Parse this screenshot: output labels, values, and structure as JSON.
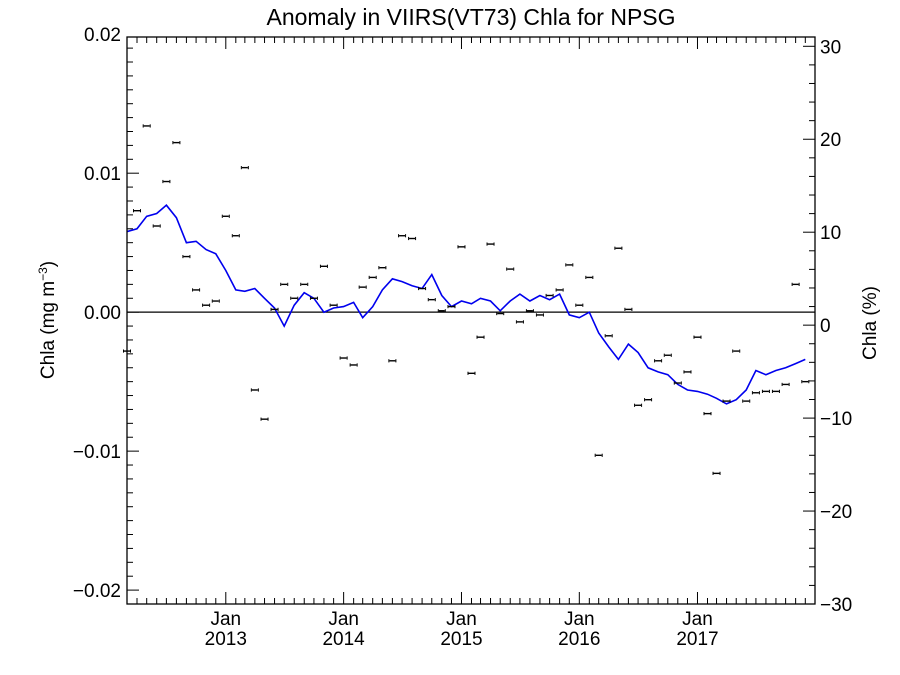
{
  "chart_data": {
    "type": "scatter",
    "title": "Anomaly in VIIRS(VT73) Chla for NPSG",
    "ylabel_left_main": "Chla (mg m",
    "ylabel_left_sup": "−3",
    "ylabel_left_tail": ")",
    "ylabel_right": "Chla (%)",
    "xlim": [
      "2012-03-01",
      "2017-12-31"
    ],
    "ylim_left": [
      -0.021,
      0.0198
    ],
    "ylim_right": [
      -30,
      31
    ],
    "y_ticks_left": [
      {
        "value": 0.02,
        "label": "0.02"
      },
      {
        "value": 0.01,
        "label": "0.01"
      },
      {
        "value": 0.0,
        "label": "0.00"
      },
      {
        "value": -0.01,
        "label": "−0.01"
      },
      {
        "value": -0.02,
        "label": "−0.02"
      }
    ],
    "y_ticks_right": [
      {
        "value": 30,
        "label": "30"
      },
      {
        "value": 20,
        "label": "20"
      },
      {
        "value": 10,
        "label": "10"
      },
      {
        "value": 0,
        "label": "0"
      },
      {
        "value": -10,
        "label": "−10"
      },
      {
        "value": -20,
        "label": "−20"
      },
      {
        "value": -30,
        "label": "−30"
      }
    ],
    "x_ticks": [
      {
        "date": "2013-01-01",
        "month": "Jan",
        "year": "2013"
      },
      {
        "date": "2014-01-01",
        "month": "Jan",
        "year": "2014"
      },
      {
        "date": "2015-01-01",
        "month": "Jan",
        "year": "2015"
      },
      {
        "date": "2016-01-01",
        "month": "Jan",
        "year": "2016"
      },
      {
        "date": "2017-01-01",
        "month": "Jan",
        "year": "2017"
      }
    ],
    "grid": false,
    "zero_line": true,
    "colors": {
      "smoothed_line": "#0000ee",
      "points": "#000000"
    },
    "series": [
      {
        "kind": "points_with_error_bars",
        "x": [
          "2012-03-01",
          "2012-04-01",
          "2012-05-01",
          "2012-06-01",
          "2012-07-01",
          "2012-08-01",
          "2012-09-01",
          "2012-10-01",
          "2012-11-01",
          "2012-12-01",
          "2013-01-01",
          "2013-02-01",
          "2013-03-01",
          "2013-04-01",
          "2013-05-01",
          "2013-06-01",
          "2013-07-01",
          "2013-08-01",
          "2013-09-01",
          "2013-10-01",
          "2013-11-01",
          "2013-12-01",
          "2014-01-01",
          "2014-02-01",
          "2014-03-01",
          "2014-04-01",
          "2014-05-01",
          "2014-06-01",
          "2014-07-01",
          "2014-08-01",
          "2014-09-01",
          "2014-10-01",
          "2014-11-01",
          "2014-12-01",
          "2015-01-01",
          "2015-02-01",
          "2015-03-01",
          "2015-04-01",
          "2015-05-01",
          "2015-06-01",
          "2015-07-01",
          "2015-08-01",
          "2015-09-01",
          "2015-10-01",
          "2015-11-01",
          "2015-12-01",
          "2016-01-01",
          "2016-02-01",
          "2016-03-01",
          "2016-04-01",
          "2016-05-01",
          "2016-06-01",
          "2016-07-01",
          "2016-08-01",
          "2016-09-01",
          "2016-10-01",
          "2016-11-01",
          "2016-12-01",
          "2017-01-01",
          "2017-02-01",
          "2017-03-01",
          "2017-04-01",
          "2017-05-01",
          "2017-06-01",
          "2017-07-01",
          "2017-08-01",
          "2017-09-01",
          "2017-10-01",
          "2017-11-01",
          "2017-12-01"
        ],
        "y": [
          -0.0028,
          0.0073,
          0.0134,
          0.0062,
          0.0094,
          0.0122,
          0.004,
          0.0016,
          0.0005,
          0.0008,
          0.0069,
          0.0055,
          0.0104,
          -0.0056,
          -0.0077,
          0.0002,
          0.002,
          0.001,
          0.002,
          0.001,
          0.0033,
          0.0005,
          -0.0033,
          -0.0038,
          0.0018,
          0.0025,
          0.0032,
          -0.0035,
          0.0055,
          0.0053,
          0.0017,
          0.0009,
          0.0001,
          0.0004,
          0.0047,
          -0.0044,
          -0.0018,
          0.0049,
          -0.0001,
          0.0031,
          -0.0007,
          0.0001,
          -0.0002,
          0.0012,
          0.0016,
          0.0034,
          0.0005,
          0.0025,
          -0.0103,
          -0.0017,
          0.0046,
          0.0002,
          -0.0067,
          -0.0063,
          -0.0035,
          -0.0031,
          -0.0051,
          -0.0043,
          -0.0018,
          -0.0073,
          -0.0116,
          -0.0064,
          -0.0028,
          -0.0064,
          -0.0058,
          -0.0057,
          -0.0057,
          -0.0052,
          0.002,
          -0.005
        ]
      },
      {
        "kind": "smoothed_line",
        "x": [
          "2012-03-01",
          "2012-04-01",
          "2012-05-01",
          "2012-06-01",
          "2012-07-01",
          "2012-08-01",
          "2012-09-01",
          "2012-10-01",
          "2012-11-01",
          "2012-12-01",
          "2013-01-01",
          "2013-02-01",
          "2013-03-01",
          "2013-04-01",
          "2013-05-01",
          "2013-06-01",
          "2013-07-01",
          "2013-08-01",
          "2013-09-01",
          "2013-10-01",
          "2013-11-01",
          "2013-12-01",
          "2014-01-01",
          "2014-02-01",
          "2014-03-01",
          "2014-04-01",
          "2014-05-01",
          "2014-06-01",
          "2014-07-01",
          "2014-08-01",
          "2014-09-01",
          "2014-10-01",
          "2014-11-01",
          "2014-12-01",
          "2015-01-01",
          "2015-02-01",
          "2015-03-01",
          "2015-04-01",
          "2015-05-01",
          "2015-06-01",
          "2015-07-01",
          "2015-08-01",
          "2015-09-01",
          "2015-10-01",
          "2015-11-01",
          "2015-12-01",
          "2016-01-01",
          "2016-02-01",
          "2016-03-01",
          "2016-04-01",
          "2016-05-01",
          "2016-06-01",
          "2016-07-01",
          "2016-08-01",
          "2016-09-01",
          "2016-10-01",
          "2016-11-01",
          "2016-12-01",
          "2017-01-01",
          "2017-02-01",
          "2017-03-01",
          "2017-04-01",
          "2017-05-01",
          "2017-06-01",
          "2017-07-01",
          "2017-08-01",
          "2017-09-01",
          "2017-10-01",
          "2017-11-01",
          "2017-12-01"
        ],
        "y": [
          0.0058,
          0.006,
          0.0069,
          0.0071,
          0.0077,
          0.0068,
          0.005,
          0.0051,
          0.0045,
          0.0042,
          0.003,
          0.0016,
          0.0015,
          0.0017,
          0.001,
          0.0003,
          -0.001,
          0.0005,
          0.0014,
          0.001,
          0.0,
          0.0003,
          0.0004,
          0.0007,
          -0.0004,
          0.0004,
          0.0016,
          0.0024,
          0.0022,
          0.0019,
          0.0017,
          0.0027,
          0.0012,
          0.0004,
          0.0008,
          0.0006,
          0.001,
          0.0008,
          0.0001,
          0.0008,
          0.0013,
          0.0008,
          0.0012,
          0.0009,
          0.0013,
          -0.0002,
          -0.0004,
          0.0,
          -0.0015,
          -0.0025,
          -0.0034,
          -0.0023,
          -0.0029,
          -0.004,
          -0.0043,
          -0.0045,
          -0.0052,
          -0.0056,
          -0.0057,
          -0.0059,
          -0.0062,
          -0.0066,
          -0.0063,
          -0.0056,
          -0.0042,
          -0.0045,
          -0.0042,
          -0.004,
          -0.0037,
          -0.0034
        ]
      }
    ]
  }
}
